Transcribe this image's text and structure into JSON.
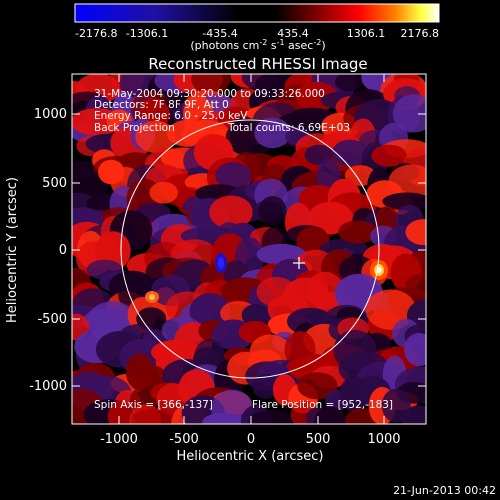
{
  "colorbar": {
    "ticks": [
      "-2176.8",
      "-1306.1",
      "-435.4",
      "435.4",
      "1306.1",
      "2176.8"
    ],
    "units_main": "(photons cm",
    "units_exp1": "-2",
    "units_mid": " s",
    "units_exp2": "-1",
    "units_end1": " asec",
    "units_exp3": "-2",
    "units_close": ")"
  },
  "title": "Reconstructed RHESSI Image",
  "info_lines": [
    "31-May-2004 09:30:20.000 to 09:33:26.000",
    "Detectors: 7F 8F 9F, Att 0",
    "Energy Range: 6.0 - 25.0 keV",
    "Back Projection",
    "Total counts: 6.69E+03"
  ],
  "footer": {
    "spin_axis": "Spin Axis = [366,-137]",
    "flare_position": "Flare Position = [952,-183]",
    "timestamp": "21-Jun-2013 00:42"
  },
  "axes": {
    "xlabel": "Heliocentric X (arcsec)",
    "ylabel": "Heliocentric Y (arcsec)",
    "xticks": [
      "-1000",
      "-500",
      "0",
      "500",
      "1000"
    ],
    "yticks": [
      "1000",
      "500",
      "0",
      "-500",
      "-1000"
    ]
  },
  "chart_data": {
    "type": "heatmap",
    "title": "Reconstructed RHESSI Image",
    "xlabel": "Heliocentric X (arcsec)",
    "ylabel": "Heliocentric Y (arcsec)",
    "xlim": [
      -1300,
      1300
    ],
    "ylim": [
      -1250,
      1300
    ],
    "color_range": [
      -2176.8,
      2176.8
    ],
    "solar_disk_radius_arcsec": 950,
    "spin_axis": [
      366,
      -137
    ],
    "flare_position": [
      952,
      -183
    ],
    "colors": {
      "low": "#0000ff",
      "zero": "#000000",
      "mid": "#ff0000",
      "high": "#ffffff"
    }
  }
}
